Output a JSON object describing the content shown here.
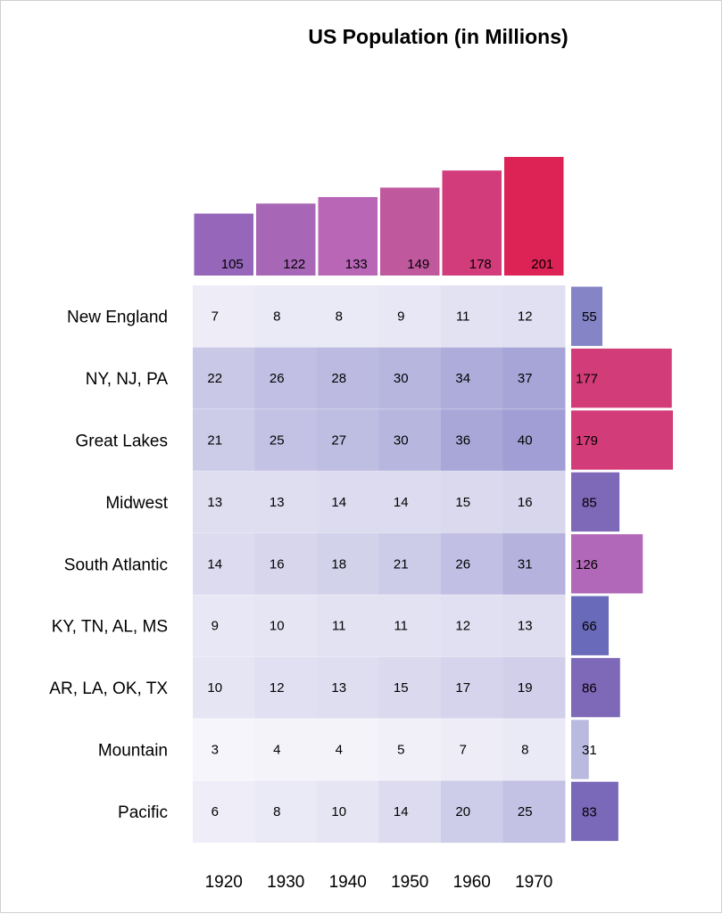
{
  "chart_data": {
    "type": "heatmap",
    "title": "US Population (in Millions)",
    "xlabel": "",
    "ylabel": "",
    "columns": [
      "1920",
      "1930",
      "1940",
      "1950",
      "1960",
      "1970"
    ],
    "rows": [
      "New England",
      "NY, NJ, PA",
      "Great Lakes",
      "Midwest",
      "South Atlantic",
      "KY, TN, AL, MS",
      "AR, LA, OK, TX",
      "Mountain",
      "Pacific"
    ],
    "values": [
      [
        7,
        8,
        8,
        9,
        11,
        12
      ],
      [
        22,
        26,
        28,
        30,
        34,
        37
      ],
      [
        21,
        25,
        27,
        30,
        36,
        40
      ],
      [
        13,
        13,
        14,
        14,
        15,
        16
      ],
      [
        14,
        16,
        18,
        21,
        26,
        31
      ],
      [
        9,
        10,
        11,
        11,
        12,
        13
      ],
      [
        10,
        12,
        13,
        15,
        17,
        19
      ],
      [
        3,
        4,
        4,
        5,
        7,
        8
      ],
      [
        6,
        8,
        10,
        14,
        20,
        25
      ]
    ],
    "column_totals": {
      "type": "bar",
      "categories": [
        "1920",
        "1930",
        "1940",
        "1950",
        "1960",
        "1970"
      ],
      "values": [
        105,
        122,
        133,
        149,
        178,
        201
      ],
      "colors": [
        "#9566b9",
        "#a866b7",
        "#ba66b7",
        "#c0589e",
        "#d23c7a",
        "#dd2255"
      ]
    },
    "row_totals": {
      "type": "bar",
      "categories": [
        "New England",
        "NY, NJ, PA",
        "Great Lakes",
        "Midwest",
        "South Atlantic",
        "KY, TN, AL, MS",
        "AR, LA, OK, TX",
        "Mountain",
        "Pacific"
      ],
      "values": [
        55,
        177,
        179,
        85,
        126,
        66,
        86,
        31,
        83
      ],
      "colors": [
        "#8484c6",
        "#d23c78",
        "#d23c78",
        "#7e68b8",
        "#b268b8",
        "#6a6aba",
        "#7e68b8",
        "#babae0",
        "#7a68b8"
      ]
    },
    "cell_color_scale": {
      "low": "#f6f5fb",
      "high": "#a09ed4",
      "min": 3,
      "max": 40
    }
  }
}
